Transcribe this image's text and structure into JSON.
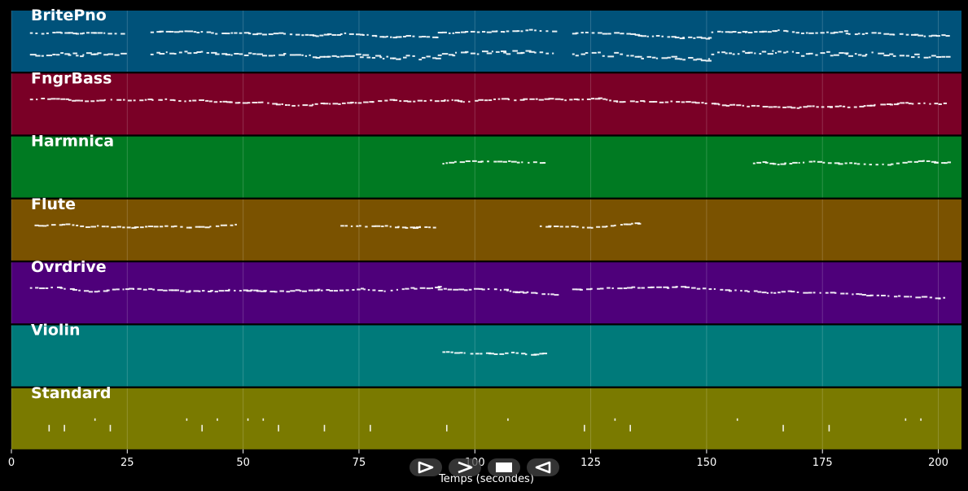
{
  "tracks": [
    {
      "name": "BritePno",
      "color": "#00527a"
    },
    {
      "name": "FngrBass",
      "color": "#7a0026"
    },
    {
      "name": "Harmnica",
      "color": "#007a22"
    },
    {
      "name": "Flute",
      "color": "#7a5200"
    },
    {
      "name": "Ovrdrive",
      "color": "#4e007a"
    },
    {
      "name": "Violin",
      "color": "#007a7a"
    },
    {
      "name": "Standard",
      "color": "#7a7a00"
    }
  ],
  "x_axis": {
    "label": "Temps (secondes)",
    "ticks": [
      0,
      25,
      50,
      75,
      100,
      125,
      150,
      175,
      200
    ],
    "range": [
      0,
      205
    ]
  },
  "controls": [
    {
      "name": "play-button",
      "icon": "play-icon"
    },
    {
      "name": "forward-button",
      "icon": "forward-icon"
    },
    {
      "name": "stop-button",
      "icon": "stop-icon"
    },
    {
      "name": "back-button",
      "icon": "back-icon"
    }
  ],
  "note_color": "#ffffff",
  "grid_color": "#ffffff"
}
